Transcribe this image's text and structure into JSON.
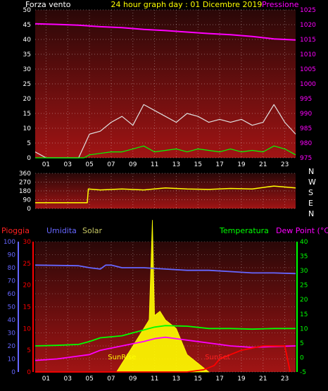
{
  "header": {
    "left_label": "Forza vento",
    "title": "24 hour graph day : 01 Dicembre 2019",
    "right_label": "Pressione"
  },
  "colors": {
    "wind_avg": "#00ff00",
    "wind_gust": "#e0e0e0",
    "pressure": "#ff00ff",
    "direction": "#ffff00",
    "humidity": "#6666ff",
    "temperature": "#00ff00",
    "dew_point": "#ff00ff",
    "rain": "#ff0000",
    "solar": "#ffff00",
    "sunrise": "#ffff00",
    "sunset": "#ff0000",
    "plot_top": "#3a0a0a",
    "plot_bottom": "#a01010",
    "grid": "#ffffff"
  },
  "bottom_labels": {
    "rain": "Pioggia",
    "humidity": "Umidita",
    "solar": "Solar",
    "temperature": "Temperatura",
    "dew_point": "Dew Point (°C)",
    "sunrise": "SunRise",
    "sunset": "SunSet"
  },
  "direction_labels": [
    "N",
    "W",
    "S",
    "E",
    "N"
  ],
  "x_ticks": [
    "01",
    "03",
    "05",
    "07",
    "09",
    "11",
    "13",
    "15",
    "17",
    "19",
    "21",
    "23"
  ],
  "chart_data": [
    {
      "type": "line",
      "name": "wind-pressure",
      "x_range": [
        0,
        24
      ],
      "y_left": {
        "ticks": [
          0,
          5,
          10,
          15,
          20,
          25,
          30,
          35,
          40,
          45,
          50
        ],
        "range": [
          0,
          50
        ]
      },
      "y_right": {
        "ticks": [
          975,
          980,
          985,
          990,
          995,
          1000,
          1005,
          1010,
          1015,
          1020,
          1025
        ],
        "range": [
          975,
          1025
        ]
      },
      "series": [
        {
          "key": "pressure",
          "axis": "right",
          "points": [
            [
              0,
              1020.3
            ],
            [
              2,
              1020.1
            ],
            [
              4,
              1019.8
            ],
            [
              6,
              1019.3
            ],
            [
              8,
              1019
            ],
            [
              10,
              1018.4
            ],
            [
              12,
              1018
            ],
            [
              14,
              1017.5
            ],
            [
              16,
              1017
            ],
            [
              18,
              1016.6
            ],
            [
              20,
              1016
            ],
            [
              22,
              1015.2
            ],
            [
              24,
              1014.8
            ]
          ]
        },
        {
          "key": "wind_gust",
          "axis": "left",
          "points": [
            [
              0,
              2
            ],
            [
              0.5,
              1
            ],
            [
              1,
              0
            ],
            [
              4,
              0
            ],
            [
              4.5,
              4
            ],
            [
              5,
              8
            ],
            [
              6,
              9
            ],
            [
              7,
              12
            ],
            [
              8,
              14
            ],
            [
              9,
              11
            ],
            [
              10,
              18
            ],
            [
              11,
              16
            ],
            [
              12,
              14
            ],
            [
              13,
              12
            ],
            [
              14,
              15
            ],
            [
              15,
              14
            ],
            [
              16,
              12
            ],
            [
              17,
              13
            ],
            [
              18,
              12
            ],
            [
              19,
              13
            ],
            [
              20,
              11
            ],
            [
              21,
              12
            ],
            [
              22,
              18
            ],
            [
              23,
              12
            ],
            [
              24,
              8
            ]
          ]
        },
        {
          "key": "wind_avg",
          "axis": "left",
          "points": [
            [
              0,
              0
            ],
            [
              4.5,
              0
            ],
            [
              5,
              1
            ],
            [
              6,
              1.5
            ],
            [
              7,
              2
            ],
            [
              8,
              2
            ],
            [
              9,
              3
            ],
            [
              10,
              4
            ],
            [
              11,
              2
            ],
            [
              12,
              2.5
            ],
            [
              13,
              3
            ],
            [
              14,
              2
            ],
            [
              15,
              3
            ],
            [
              16,
              2.5
            ],
            [
              17,
              2
            ],
            [
              18,
              3
            ],
            [
              19,
              2
            ],
            [
              20,
              2.5
            ],
            [
              21,
              2
            ],
            [
              22,
              4
            ],
            [
              23,
              3
            ],
            [
              24,
              1
            ]
          ]
        }
      ]
    },
    {
      "type": "line",
      "name": "wind-direction",
      "x_range": [
        0,
        24
      ],
      "y_left": {
        "ticks": [
          0,
          90,
          180,
          270,
          360
        ],
        "range": [
          0,
          360
        ]
      },
      "series": [
        {
          "key": "direction",
          "axis": "left",
          "points": [
            [
              0,
              60
            ],
            [
              4.8,
              60
            ],
            [
              4.9,
              200
            ],
            [
              6,
              190
            ],
            [
              8,
              200
            ],
            [
              10,
              190
            ],
            [
              12,
              210
            ],
            [
              14,
              200
            ],
            [
              16,
              195
            ],
            [
              18,
              205
            ],
            [
              20,
              200
            ],
            [
              22,
              230
            ],
            [
              24,
              210
            ]
          ]
        }
      ]
    },
    {
      "type": "line",
      "name": "temp-hum-rain-solar",
      "x_range": [
        0,
        24
      ],
      "y_left_humidity": {
        "ticks": [
          0,
          10,
          20,
          30,
          40,
          50,
          60,
          70,
          80,
          90,
          100
        ],
        "range": [
          0,
          100
        ]
      },
      "y_left_rain": {
        "ticks": [
          0,
          5,
          10,
          15,
          20,
          25,
          30
        ],
        "range": [
          0,
          30
        ]
      },
      "y_right_temp": {
        "ticks": [
          -5,
          0,
          5,
          10,
          15,
          20,
          25,
          30,
          35,
          40
        ],
        "range": [
          -5,
          40
        ]
      },
      "series": [
        {
          "key": "humidity",
          "axis": "humidity",
          "points": [
            [
              0,
              82
            ],
            [
              4,
              81.5
            ],
            [
              5,
              80
            ],
            [
              6,
              79
            ],
            [
              6.5,
              82
            ],
            [
              7,
              82
            ],
            [
              8,
              80
            ],
            [
              10,
              80
            ],
            [
              12,
              79
            ],
            [
              14,
              78
            ],
            [
              16,
              78
            ],
            [
              18,
              77
            ],
            [
              20,
              76
            ],
            [
              22,
              76
            ],
            [
              24,
              75.5
            ]
          ]
        },
        {
          "key": "temperature",
          "axis": "temp",
          "points": [
            [
              0,
              4
            ],
            [
              2,
              4.2
            ],
            [
              4,
              4.5
            ],
            [
              5,
              5.5
            ],
            [
              6,
              6.8
            ],
            [
              8,
              7.5
            ],
            [
              9,
              8.5
            ],
            [
              10,
              9.5
            ],
            [
              11,
              10.5
            ],
            [
              12,
              11
            ],
            [
              14,
              10.8
            ],
            [
              16,
              10
            ],
            [
              18,
              10
            ],
            [
              20,
              9.8
            ],
            [
              22,
              10
            ],
            [
              24,
              10
            ]
          ]
        },
        {
          "key": "dew_point",
          "axis": "temp",
          "points": [
            [
              0,
              -1
            ],
            [
              2,
              -0.5
            ],
            [
              4,
              0.5
            ],
            [
              5,
              1
            ],
            [
              6,
              2.5
            ],
            [
              8,
              4
            ],
            [
              10,
              5.5
            ],
            [
              11,
              6.5
            ],
            [
              12,
              7
            ],
            [
              14,
              6
            ],
            [
              16,
              5
            ],
            [
              18,
              4
            ],
            [
              20,
              3.5
            ],
            [
              22,
              3.8
            ],
            [
              24,
              4
            ]
          ]
        },
        {
          "key": "rain",
          "axis": "rain",
          "points": [
            [
              0,
              0
            ],
            [
              14,
              0
            ],
            [
              15.5,
              0.5
            ],
            [
              16.5,
              1.5
            ],
            [
              17,
              3
            ],
            [
              18,
              4
            ],
            [
              19,
              5
            ],
            [
              20,
              5.5
            ],
            [
              21,
              6
            ],
            [
              22.5,
              6
            ],
            [
              23,
              6
            ],
            [
              23.5,
              0
            ]
          ]
        }
      ],
      "solar": {
        "points": [
          [
            7.5,
            0
          ],
          [
            8,
            2
          ],
          [
            9,
            6
          ],
          [
            9.5,
            8
          ],
          [
            10,
            10
          ],
          [
            10.5,
            12
          ],
          [
            10.8,
            35
          ],
          [
            11,
            13
          ],
          [
            11.5,
            14
          ],
          [
            12,
            12
          ],
          [
            12.5,
            11
          ],
          [
            13,
            10
          ],
          [
            13.5,
            7
          ],
          [
            14,
            4
          ],
          [
            15,
            2
          ],
          [
            16,
            0
          ]
        ]
      },
      "annotations": [
        {
          "key": "sunrise",
          "x": 8
        },
        {
          "key": "sunset",
          "x": 16.8
        }
      ]
    }
  ]
}
